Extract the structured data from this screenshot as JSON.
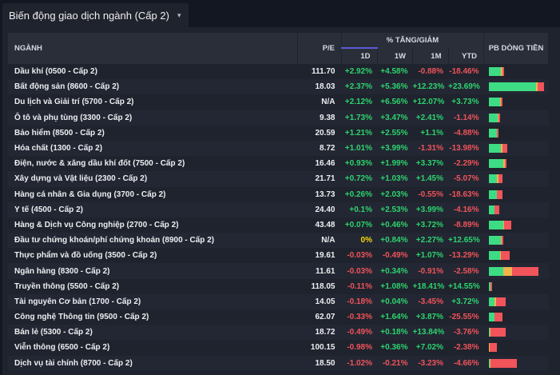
{
  "tab": {
    "title": "Biến động giao dịch ngành (Cấp 2)",
    "caret_icon": "caret-down-icon"
  },
  "table": {
    "headers": {
      "sector": "NGÀNH",
      "pe": "P/E",
      "group": "% TĂNG/GIẢM",
      "d1": "1D",
      "w1": "1W",
      "m1": "1M",
      "ytd": "YTD",
      "flow": "PB DÒNG TIỀN"
    },
    "colors": {
      "up": "#2dd36f",
      "down": "#f0535a",
      "flat": "#f5d90a",
      "bar_green": "#3ddc84",
      "bar_yellow": "#f0b44c",
      "bar_red": "#f2545b"
    },
    "rows": [
      {
        "name": "Dầu khí (0500 - Cấp 2)",
        "pe": "111.70",
        "d1": "+2.92%",
        "w1": "+4.58%",
        "m1": "-0.88%",
        "ytd": "-18.46%",
        "flow": [
          0.22,
          0.02,
          0.03
        ]
      },
      {
        "name": "Bất động sản (8600 - Cấp 2)",
        "pe": "18.03",
        "d1": "+2.37%",
        "w1": "+5.36%",
        "m1": "+12.23%",
        "ytd": "+23.69%",
        "flow": [
          0.82,
          0.04,
          0.1
        ]
      },
      {
        "name": "Du lịch và Giải trí (5700 - Cấp 2)",
        "pe": "N/A",
        "d1": "+2.12%",
        "w1": "+6.56%",
        "m1": "+12.07%",
        "ytd": "+3.73%",
        "flow": [
          0.2,
          0.02,
          0.02
        ]
      },
      {
        "name": "Ô tô và phụ tùng (3300 - Cấp 2)",
        "pe": "9.38",
        "d1": "+1.73%",
        "w1": "+3.47%",
        "m1": "+2.41%",
        "ytd": "-1.14%",
        "flow": [
          0.16,
          0.02,
          0.02
        ]
      },
      {
        "name": "Bảo hiểm (8500 - Cấp 2)",
        "pe": "20.59",
        "d1": "+1.21%",
        "w1": "+2.55%",
        "m1": "+1.1%",
        "ytd": "-4.88%",
        "flow": [
          0.14,
          0.01,
          0.02
        ]
      },
      {
        "name": "Hóa chất (1300 - Cấp 2)",
        "pe": "8.72",
        "d1": "+1.01%",
        "w1": "+3.99%",
        "m1": "-1.31%",
        "ytd": "-13.98%",
        "flow": [
          0.22,
          0.03,
          0.08
        ]
      },
      {
        "name": "Điện, nước & xăng dầu khí đốt (7500 - Cấp 2)",
        "pe": "16.46",
        "d1": "+0.93%",
        "w1": "+1.99%",
        "m1": "+3.37%",
        "ytd": "-2.29%",
        "flow": [
          0.26,
          0.02,
          0.03
        ]
      },
      {
        "name": "Xây dựng và Vật liệu (2300 - Cấp 2)",
        "pe": "21.71",
        "d1": "+0.72%",
        "w1": "+1.03%",
        "m1": "+1.45%",
        "ytd": "-5.07%",
        "flow": [
          0.15,
          0.02,
          0.08
        ]
      },
      {
        "name": "Hàng cá nhân & Gia dụng (3700 - Cấp 2)",
        "pe": "13.73",
        "d1": "+0.26%",
        "w1": "+2.03%",
        "m1": "-0.55%",
        "ytd": "-18.63%",
        "flow": [
          0.14,
          0.01,
          0.1
        ]
      },
      {
        "name": "Y tế (4500 - Cấp 2)",
        "pe": "24.40",
        "d1": "+0.1%",
        "w1": "+2.53%",
        "m1": "+3.99%",
        "ytd": "-4.16%",
        "flow": [
          0.1,
          0.01,
          0.08
        ]
      },
      {
        "name": "Hàng & Dịch vụ Công nghiệp (2700 - Cấp 2)",
        "pe": "43.48",
        "d1": "+0.07%",
        "w1": "+0.46%",
        "m1": "+3.72%",
        "ytd": "-8.89%",
        "flow": [
          0.25,
          0.02,
          0.12
        ]
      },
      {
        "name": "Đầu tư chứng khoán/phí chứng khoán (8900 - Cấp 2)",
        "pe": "N/A",
        "d1": "0%",
        "w1": "+0.84%",
        "m1": "+2.27%",
        "ytd": "+12.65%",
        "flow": [
          0.22,
          0.01,
          0.03
        ]
      },
      {
        "name": "Thực phẩm và đồ uống (3500 - Cấp 2)",
        "pe": "19.61",
        "d1": "-0.03%",
        "w1": "-0.49%",
        "m1": "+1.07%",
        "ytd": "-13.29%",
        "flow": [
          0.2,
          0.02,
          0.15
        ]
      },
      {
        "name": "Ngân hàng (8300 - Cấp 2)",
        "pe": "11.61",
        "d1": "-0.03%",
        "w1": "+0.34%",
        "m1": "-0.91%",
        "ytd": "-2.58%",
        "flow": [
          0.26,
          0.15,
          0.46
        ]
      },
      {
        "name": "Truyền thông (5500 - Cấp 2)",
        "pe": "118.05",
        "d1": "-0.11%",
        "w1": "+1.08%",
        "m1": "+18.41%",
        "ytd": "+14.55%",
        "flow": [
          0.03,
          0.01,
          0.02
        ]
      },
      {
        "name": "Tài nguyên Cơ bản (1700 - Cấp 2)",
        "pe": "14.05",
        "d1": "-0.18%",
        "w1": "+0.04%",
        "m1": "-3.45%",
        "ytd": "+3.72%",
        "flow": [
          0.1,
          0.03,
          0.17
        ]
      },
      {
        "name": "Công nghệ Thông tin (9500 - Cấp 2)",
        "pe": "62.07",
        "d1": "-0.33%",
        "w1": "+1.64%",
        "m1": "+3.87%",
        "ytd": "-25.55%",
        "flow": [
          0.1,
          0.01,
          0.14
        ]
      },
      {
        "name": "Bán lẻ (5300 - Cấp 2)",
        "pe": "18.72",
        "d1": "-0.49%",
        "w1": "+0.18%",
        "m1": "+13.84%",
        "ytd": "-3.76%",
        "flow": [
          0.02,
          0.01,
          0.27
        ]
      },
      {
        "name": "Viễn thông (6500 - Cấp 2)",
        "pe": "100.15",
        "d1": "-0.98%",
        "w1": "+0.36%",
        "m1": "+7.02%",
        "ytd": "-2.38%",
        "flow": [
          0.01,
          0.01,
          0.12
        ]
      },
      {
        "name": "Dịch vụ tài chính (8700 - Cấp 2)",
        "pe": "18.50",
        "d1": "-1.02%",
        "w1": "-0.21%",
        "m1": "-3.23%",
        "ytd": "-4.66%",
        "flow": [
          0.02,
          0.01,
          0.47
        ]
      }
    ]
  }
}
